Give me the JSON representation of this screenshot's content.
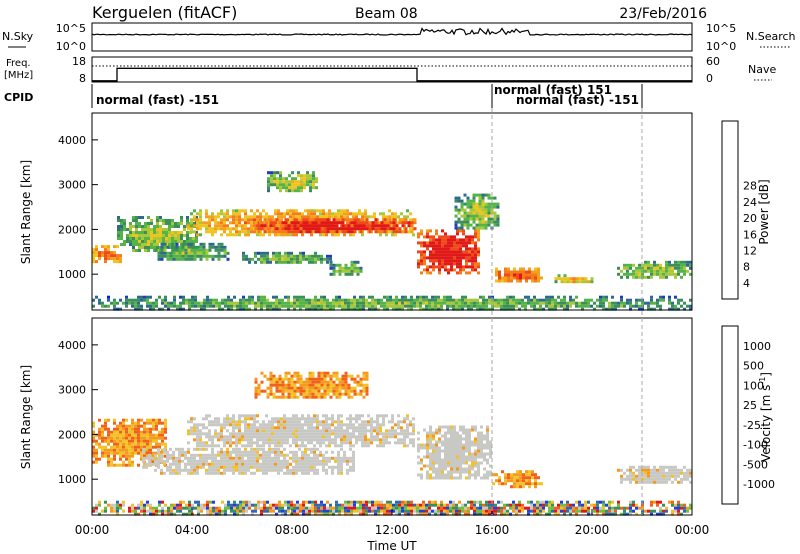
{
  "header": {
    "station": "Kerguelen (fitACF)",
    "beam": "Beam 08",
    "date": "23/Feb/2016"
  },
  "nsky_panel": {
    "left_label": "N.Sky",
    "right_label": "N.Search",
    "ticks_left": [
      "10^5",
      "10^0"
    ],
    "ticks_right": [
      "10^5",
      "10^0"
    ]
  },
  "freq_panel": {
    "left_label_line1": "Freq.",
    "left_label_line2": "[MHz]",
    "right_label": "Nave",
    "ticks_left": [
      "18",
      "8"
    ],
    "ticks_right": [
      "60",
      "0"
    ],
    "freq_steps": [
      [
        0,
        8.5
      ],
      [
        1.0,
        8.5
      ],
      [
        1.0,
        13.5
      ],
      [
        13.0,
        13.5
      ],
      [
        13.0,
        8.5
      ],
      [
        24,
        8.5
      ]
    ]
  },
  "cpid": {
    "label": "CPID",
    "entries": [
      {
        "text": "normal (fast) -151",
        "start_h": 0
      },
      {
        "text": "normal (fast) 151",
        "start_h": 16.0
      },
      {
        "text": "normal (fast) -151",
        "start_h": 16.0
      }
    ]
  },
  "chart_data": [
    {
      "type": "heatmap",
      "name": "Power",
      "ylabel": "Slant Range [km]",
      "xlim": [
        0,
        24
      ],
      "ylim": [
        200,
        4600
      ],
      "yticks": [
        1000,
        2000,
        3000,
        4000
      ],
      "colorbar": {
        "label": "Power [dB]",
        "ticks": [
          "4",
          "8",
          "12",
          "16",
          "20",
          "24",
          "28"
        ],
        "colors": [
          "#0018ff",
          "#1f3fb8",
          "#2e6a8a",
          "#3b8f5a",
          "#55b347",
          "#a8c83a",
          "#f0c41e",
          "#f6a11c",
          "#f57b1b",
          "#ef4a1a",
          "#e01818"
        ]
      },
      "regions": [
        {
          "t0": 0.0,
          "t1": 1.2,
          "r0": 1250,
          "r1": 1650,
          "level": 0.65
        },
        {
          "t0": 1.0,
          "t1": 4.2,
          "r0": 1500,
          "r1": 2300,
          "level": 0.35
        },
        {
          "t0": 3.8,
          "t1": 12.9,
          "r0": 1850,
          "r1": 2450,
          "level": 0.6
        },
        {
          "t0": 6.5,
          "t1": 12.9,
          "r0": 1950,
          "r1": 2250,
          "level": 0.85
        },
        {
          "t0": 2.5,
          "t1": 5.5,
          "r0": 1300,
          "r1": 1700,
          "level": 0.3
        },
        {
          "t0": 6.0,
          "t1": 9.5,
          "r0": 1250,
          "r1": 1500,
          "level": 0.3
        },
        {
          "t0": 7.0,
          "t1": 9.0,
          "r0": 2850,
          "r1": 3300,
          "level": 0.4
        },
        {
          "t0": 9.5,
          "t1": 10.8,
          "r0": 1000,
          "r1": 1300,
          "level": 0.3
        },
        {
          "t0": 13.0,
          "t1": 15.5,
          "r0": 1000,
          "r1": 2000,
          "level": 0.85
        },
        {
          "t0": 14.5,
          "t1": 16.2,
          "r0": 2000,
          "r1": 2800,
          "level": 0.35
        },
        {
          "t0": 16.0,
          "t1": 18.0,
          "r0": 850,
          "r1": 1150,
          "level": 0.7
        },
        {
          "t0": 18.5,
          "t1": 20.0,
          "r0": 800,
          "r1": 1000,
          "level": 0.5
        },
        {
          "t0": 21.0,
          "t1": 24.0,
          "r0": 900,
          "r1": 1300,
          "level": 0.35
        },
        {
          "t0": 0.0,
          "t1": 24.0,
          "r0": 220,
          "r1": 520,
          "level": 0.3
        }
      ]
    },
    {
      "type": "heatmap",
      "name": "Velocity",
      "xlabel": "Time UT",
      "ylabel": "Slant Range [km]",
      "xlim": [
        0,
        24
      ],
      "ylim": [
        200,
        4600
      ],
      "xticks": [
        "00:00",
        "04:00",
        "08:00",
        "12:00",
        "16:00",
        "20:00",
        "00:00"
      ],
      "yticks": [
        1000,
        2000,
        3000,
        4000
      ],
      "colorbar": {
        "label_main": "Velocity [m s",
        "label_exp": "-1",
        "label_tail": "]",
        "ticks": [
          "1000",
          "500",
          "100",
          "25",
          "-25",
          "-100",
          "-500",
          "-1000"
        ],
        "colors": [
          "#1f3fe0",
          "#2e6ab0",
          "#3b8f5a",
          "#6bc040",
          "#c8c8c4",
          "#f2c22a",
          "#f59a1c",
          "#f2611b",
          "#e01818"
        ]
      },
      "regions": [
        {
          "t0": 0.0,
          "t1": 3.0,
          "r0": 1300,
          "r1": 2350,
          "kind": "orange"
        },
        {
          "t0": 3.8,
          "t1": 12.9,
          "r0": 1750,
          "r1": 2450,
          "kind": "gray"
        },
        {
          "t0": 6.5,
          "t1": 11.0,
          "r0": 2800,
          "r1": 3400,
          "kind": "orange"
        },
        {
          "t0": 2.0,
          "t1": 10.5,
          "r0": 1100,
          "r1": 1700,
          "kind": "gray"
        },
        {
          "t0": 13.0,
          "t1": 16.0,
          "r0": 1000,
          "r1": 2200,
          "kind": "gray"
        },
        {
          "t0": 16.0,
          "t1": 18.0,
          "r0": 850,
          "r1": 1200,
          "kind": "orange"
        },
        {
          "t0": 21.0,
          "t1": 24.0,
          "r0": 900,
          "r1": 1300,
          "kind": "gray"
        },
        {
          "t0": 0.0,
          "t1": 24.0,
          "r0": 220,
          "r1": 520,
          "kind": "mixed"
        }
      ]
    }
  ]
}
